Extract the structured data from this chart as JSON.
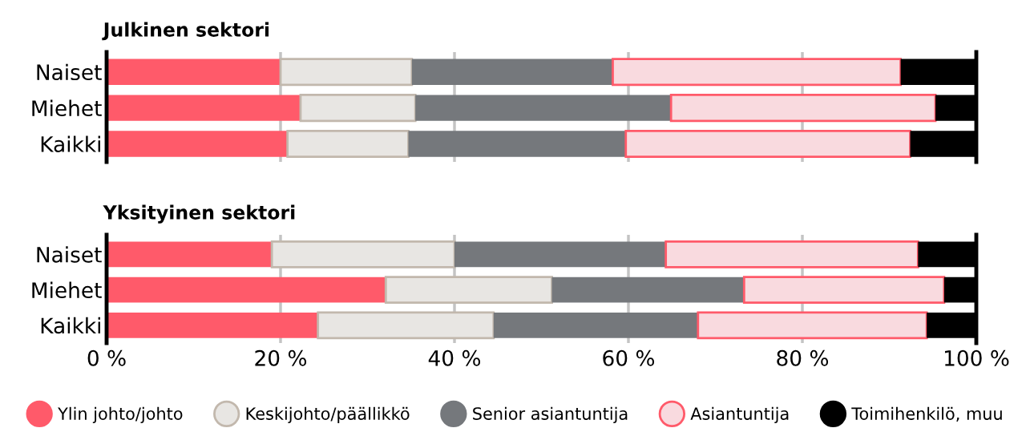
{
  "chart_data": [
    {
      "type": "bar",
      "orientation": "horizontal",
      "stacked": true,
      "title": "Julkinen sektori",
      "categories": [
        "Naiset",
        "Miehet",
        "Kaikki"
      ],
      "xlim": [
        0,
        100
      ],
      "xticks": [
        {
          "value": 0,
          "label": null
        },
        {
          "value": 20,
          "label": null
        },
        {
          "value": 40,
          "label": null
        },
        {
          "value": 60,
          "label": null
        },
        {
          "value": 80,
          "label": null
        },
        {
          "value": 100,
          "label": null
        }
      ],
      "tick_labels": "y",
      "grid": "x",
      "legend": false,
      "series": [
        {
          "color": "#ff5a6a",
          "values": [
            20.0,
            22.3,
            20.8
          ]
        },
        {
          "color": "#e8e6e3",
          "values": [
            15.1,
            13.2,
            13.9
          ]
        },
        {
          "color": "#75787c",
          "values": [
            23.1,
            29.4,
            25.0
          ]
        },
        {
          "color": "#f9dadf",
          "values": [
            33.1,
            30.4,
            32.7
          ]
        },
        {
          "color": "#000000",
          "values": [
            8.7,
            4.7,
            7.6
          ]
        }
      ]
    },
    {
      "type": "bar",
      "orientation": "horizontal",
      "stacked": true,
      "title": "Yksityinen sektori",
      "categories": [
        "Naiset",
        "Miehet",
        "Kaikki"
      ],
      "xlim": [
        0,
        100
      ],
      "xticks": [
        {
          "value": 0,
          "label": "0 %"
        },
        {
          "value": 20,
          "label": "20 %"
        },
        {
          "value": 40,
          "label": "40 %"
        },
        {
          "value": 60,
          "label": "60 %"
        },
        {
          "value": 80,
          "label": "80 %"
        },
        {
          "value": 100,
          "label": "100 %"
        }
      ],
      "grid": "x",
      "legend": "bottom",
      "series": [
        {
          "name": "Ylin johto/johto",
          "color": "#ff5a6a",
          "values": [
            19.0,
            32.1,
            24.3
          ]
        },
        {
          "name": "Keskijohto/päällikkö",
          "color": "#e8e6e3",
          "values": [
            21.0,
            19.1,
            20.2
          ]
        },
        {
          "name": "Senior asiantuntija",
          "color": "#75787c",
          "values": [
            24.3,
            22.1,
            23.5
          ]
        },
        {
          "name": "Asiantuntija",
          "color": "#f9dadf",
          "values": [
            29.0,
            23.0,
            26.3
          ]
        },
        {
          "name": "Toimihenkilö, muu",
          "color": "#000000",
          "values": [
            6.7,
            3.7,
            5.7
          ]
        }
      ]
    }
  ]
}
